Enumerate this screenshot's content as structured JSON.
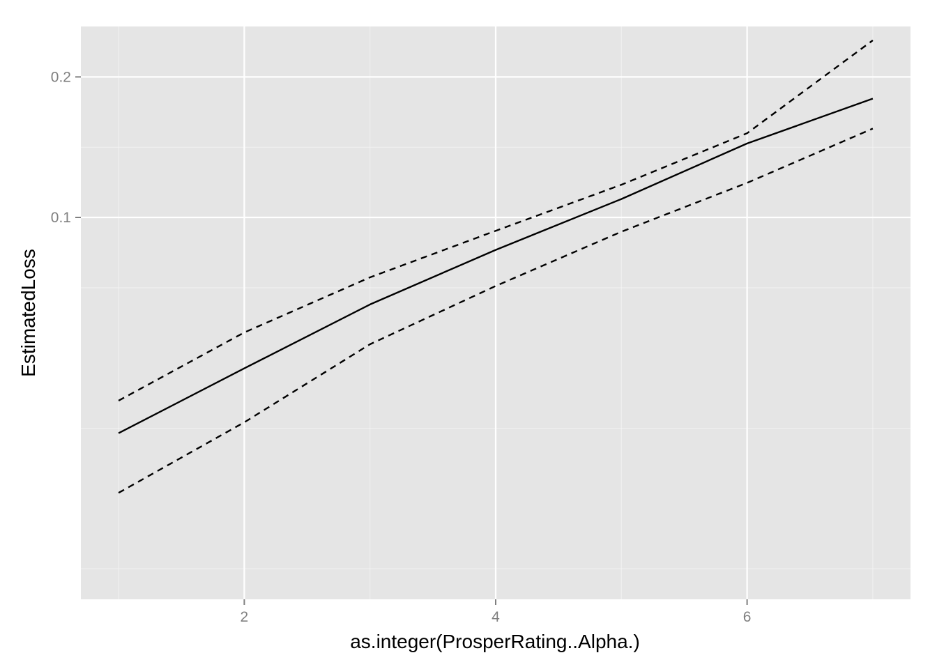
{
  "chart_data": {
    "type": "line",
    "title": "",
    "xlabel": "as.integer(ProsperRating..Alpha.)",
    "ylabel": "EstimatedLoss",
    "xlim": [
      0.7,
      7.3
    ],
    "ylim": [
      0.0152,
      0.2565
    ],
    "x_ticks": [
      2,
      4,
      6
    ],
    "x_tick_labels": [
      "2",
      "4",
      "6"
    ],
    "y_ticks": [
      0.1,
      0.2
    ],
    "y_tick_labels": [
      "0.1",
      "0.2"
    ],
    "y_scale": "log",
    "grid": true,
    "background": "#e5e5e5",
    "gridline_color": "#ffffff",
    "line_color": "#000000",
    "x": [
      1,
      2,
      3,
      4,
      5,
      6,
      7
    ],
    "series": [
      {
        "linetype": "dashed",
        "values": [
          0.0405,
          0.0567,
          0.0744,
          0.0936,
          0.1175,
          0.1515,
          0.2395
        ]
      },
      {
        "linetype": "solid",
        "values": [
          0.0345,
          0.0475,
          0.0651,
          0.0852,
          0.1095,
          0.144,
          0.1797
        ]
      },
      {
        "linetype": "dashed",
        "values": [
          0.0257,
          0.0364,
          0.0535,
          0.0713,
          0.0932,
          0.1186,
          0.155
        ]
      }
    ]
  }
}
